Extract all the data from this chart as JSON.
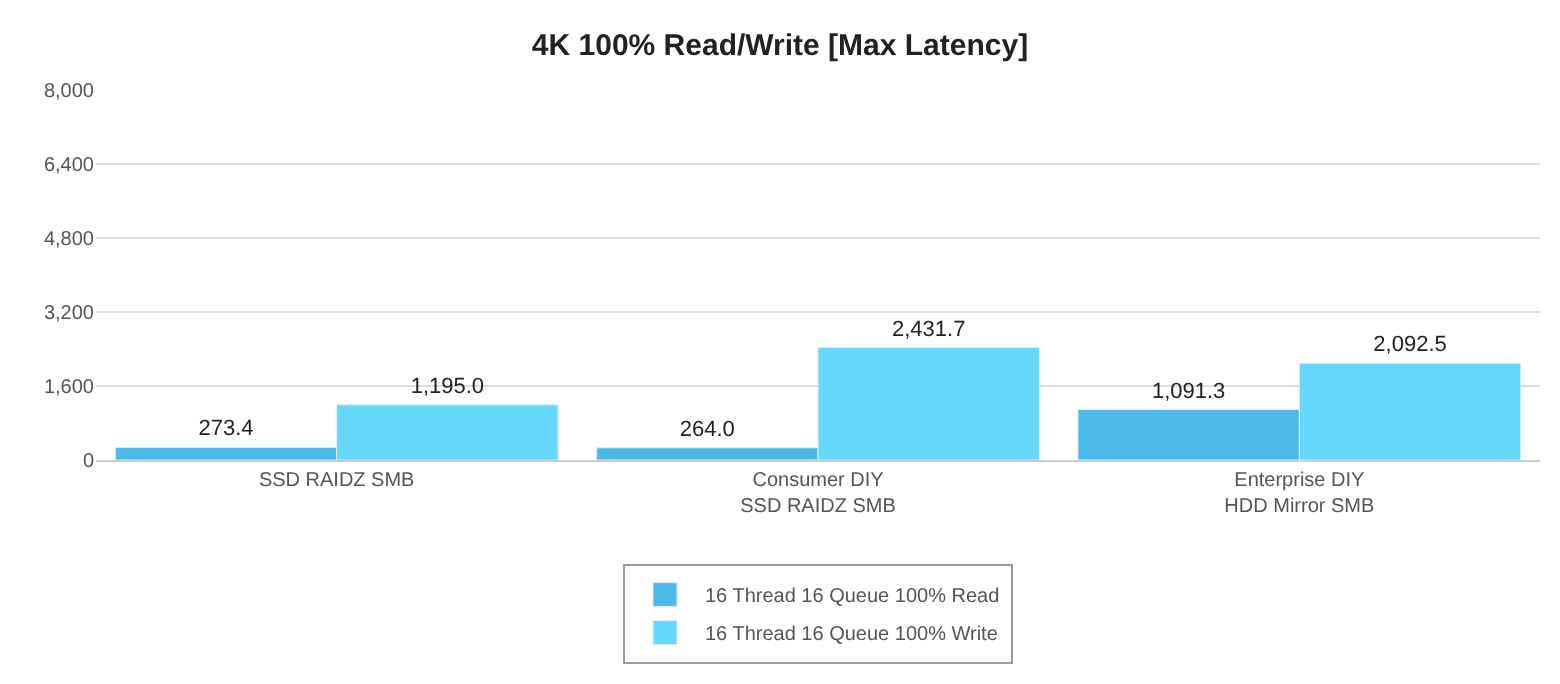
{
  "chart_data": {
    "type": "bar",
    "title": "4K 100% Read/Write [Max Latency]",
    "categories": [
      "SSD RAIDZ SMB",
      "Consumer DIY\nSSD RAIDZ SMB",
      "Enterprise DIY\nHDD Mirror SMB"
    ],
    "series": [
      {
        "name": "16 Thread 16 Queue 100% Read",
        "color": "#4cb9e8",
        "values": [
          273.4,
          264.0,
          1091.3
        ],
        "value_labels": [
          "273.4",
          "264.0",
          "1,091.3"
        ]
      },
      {
        "name": "16 Thread 16 Queue 100% Write",
        "color": "#66d8fe",
        "values": [
          1195.0,
          2431.7,
          2092.5
        ],
        "value_labels": [
          "1,195.0",
          "2,431.7",
          "2,092.5"
        ]
      }
    ],
    "ylim": [
      0,
      8000
    ],
    "yticks": [
      0,
      {
        "value": 1600,
        "label": "1,600"
      },
      {
        "value": 3200,
        "label": "3,200"
      },
      {
        "value": 4800,
        "label": "4,800"
      },
      {
        "value": 6400,
        "label": "6,400"
      },
      {
        "value": 8000,
        "label": "8,000"
      }
    ],
    "grid": "y",
    "legend": "bottom"
  }
}
